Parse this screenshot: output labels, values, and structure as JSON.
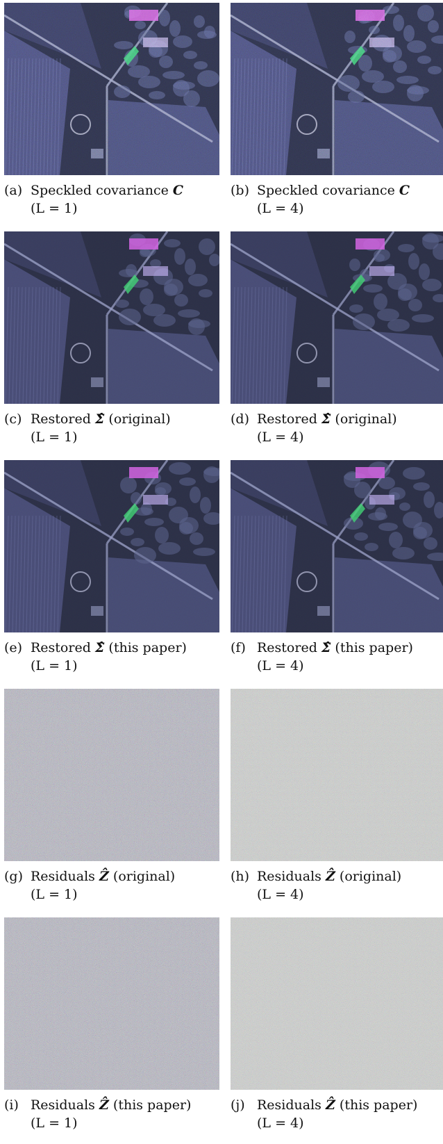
{
  "figure": {
    "panels": [
      {
        "label": "(a)",
        "text_before": "Speckled covariance",
        "symbol": "C",
        "text_after": "",
        "line2": "(L = 1)",
        "kind": "speckled"
      },
      {
        "label": "(b)",
        "text_before": "Speckled covariance",
        "symbol": "C",
        "text_after": "",
        "line2": "(L = 4)",
        "kind": "speckled"
      },
      {
        "label": "(c)",
        "text_before": "Restored",
        "symbol": "Σ̂",
        "text_after": "(original)",
        "line2": "(L = 1)",
        "kind": "restored"
      },
      {
        "label": "(d)",
        "text_before": "Restored",
        "symbol": "Σ̂",
        "text_after": "(original)",
        "line2": "(L = 4)",
        "kind": "restored"
      },
      {
        "label": "(e)",
        "text_before": "Restored",
        "symbol": "Σ̂",
        "text_after": "(this paper)",
        "line2": "(L = 1)",
        "kind": "restored"
      },
      {
        "label": "(f)",
        "text_before": "Restored",
        "symbol": "Σ̂",
        "text_after": "(this paper)",
        "line2": "(L = 4)",
        "kind": "restored"
      },
      {
        "label": "(g)",
        "text_before": "Residuals",
        "symbol": "Ẑ",
        "text_after": "(original)",
        "line2": "(L = 1)",
        "kind": "residual"
      },
      {
        "label": "(h)",
        "text_before": "Residuals",
        "symbol": "Ẑ",
        "text_after": "(original)",
        "line2": "(L = 4)",
        "kind": "residual"
      },
      {
        "label": "(i)",
        "text_before": "Residuals",
        "symbol": "Ẑ",
        "text_after": "(this paper)",
        "line2": "(L = 1)",
        "kind": "residual"
      },
      {
        "label": "(j)",
        "text_before": "Residuals",
        "symbol": "Ẑ",
        "text_after": "(this paper)",
        "line2": "(L = 4)",
        "kind": "residual"
      }
    ]
  },
  "colors": {
    "sar_background": "#2b2f45",
    "field": "#4a4f78",
    "road": "#9aa0c8",
    "building_magenta": "#d060e0",
    "building_green": "#40d070",
    "residual_gray": "#9a9aa6",
    "residual_light": "#b4b6b4"
  }
}
